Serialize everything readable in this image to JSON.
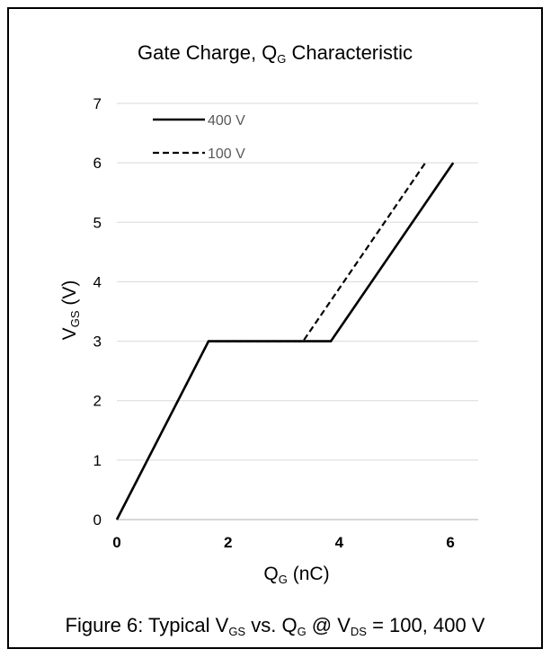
{
  "chart_data": {
    "type": "line",
    "title": "Gate Charge, Q",
    "title_sub": "G",
    "title_rest": " Characteristic",
    "xlabel": "Q",
    "xlabel_sub": "G",
    "xlabel_rest": " (nC)",
    "ylabel": "V",
    "ylabel_sub": "GS",
    "ylabel_rest": " (V)",
    "xlim": [
      0,
      6.5
    ],
    "ylim": [
      0,
      7
    ],
    "x_ticks": [
      "0",
      "2",
      "4",
      "6"
    ],
    "y_ticks": [
      "0",
      "1",
      "2",
      "3",
      "4",
      "5",
      "6",
      "7"
    ],
    "grid": "horizontal",
    "legend_position": "top-left",
    "series": [
      {
        "name": "400 V",
        "style": "solid",
        "color": "#000000",
        "points": [
          [
            0,
            0
          ],
          [
            1.65,
            3
          ],
          [
            3.85,
            3
          ],
          [
            6.05,
            6
          ]
        ]
      },
      {
        "name": "100 V",
        "style": "dashed",
        "color": "#000000",
        "points": [
          [
            0,
            0
          ],
          [
            1.65,
            3
          ],
          [
            3.35,
            3
          ],
          [
            5.55,
            6
          ]
        ]
      }
    ]
  },
  "caption": {
    "prefix": "Figure 6: Typical V",
    "sub1": "GS",
    "mid1": " vs. Q",
    "sub2": "G",
    "mid2": " @ V",
    "sub3": "DS",
    "suffix": " = 100, 400 V"
  },
  "colors": {
    "grid": "#d9d9d9",
    "axis": "#bfbfbf",
    "frame": "#000000"
  }
}
